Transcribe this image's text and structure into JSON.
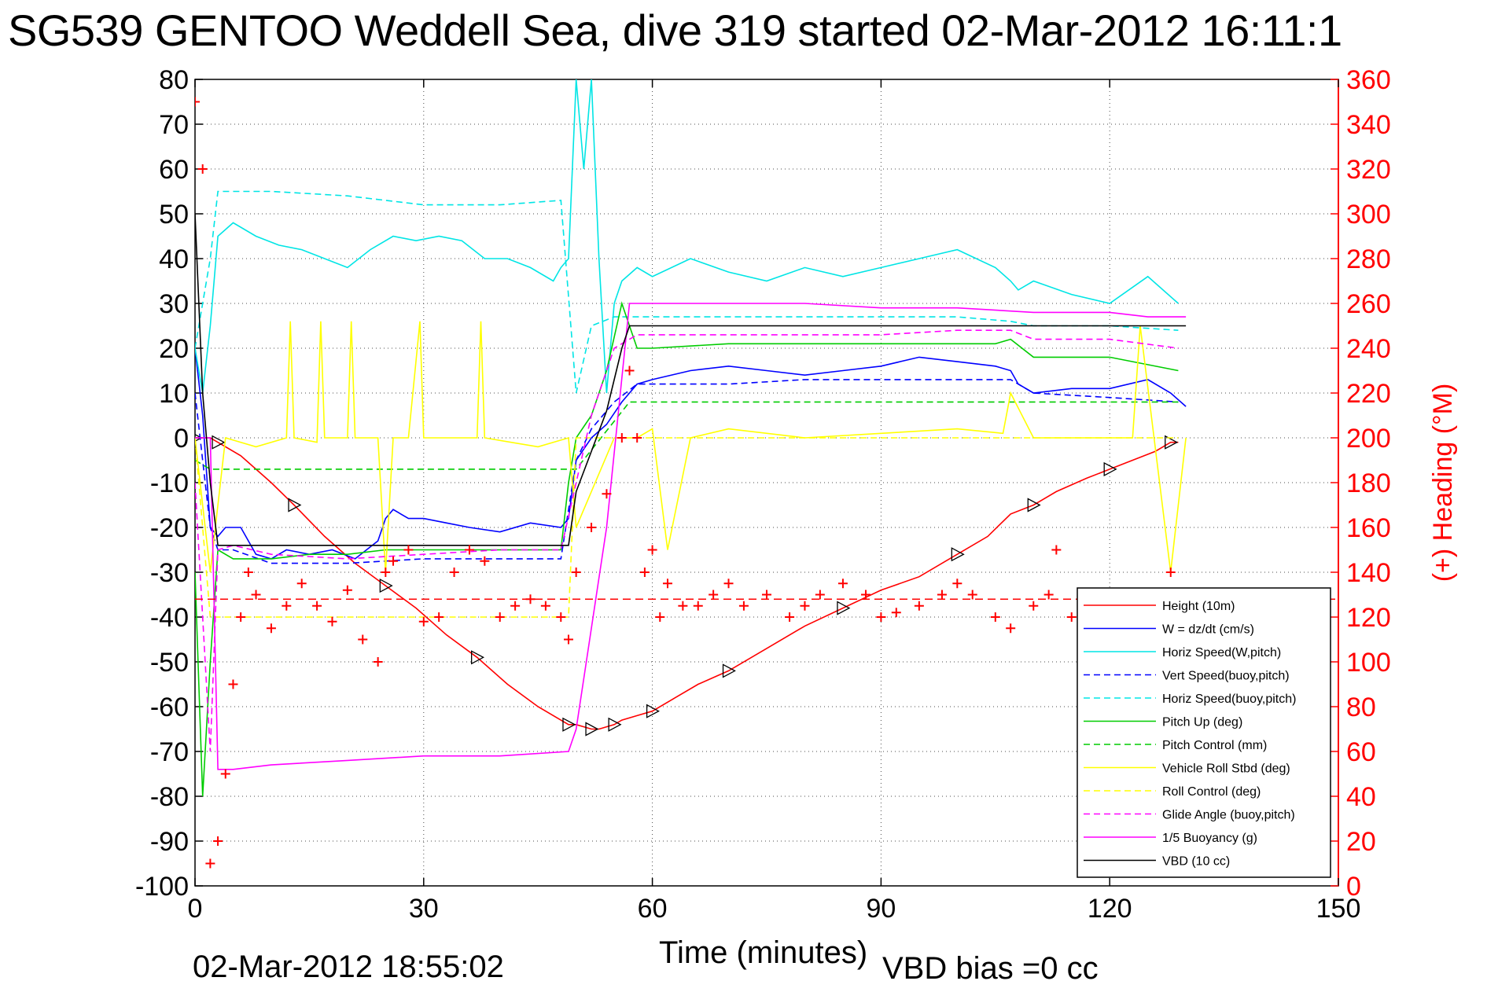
{
  "title": "SG539 GENTOO Weddell Sea, dive 319 started 02-Mar-2012 16:11:1",
  "footer": {
    "date": "02-Mar-2012 18:55:02",
    "vbd_bias": "VBD bias =0 cc"
  },
  "chart_data": {
    "type": "line",
    "xlabel": "Time (minutes)",
    "ylabel": "",
    "y2label": "(+) Heading (°M)",
    "xlim": [
      0,
      150
    ],
    "ylim": [
      -100,
      80
    ],
    "y2lim": [
      0,
      360
    ],
    "xticks": [
      0,
      30,
      60,
      90,
      120,
      150
    ],
    "yticks": [
      80,
      70,
      60,
      50,
      40,
      30,
      20,
      10,
      0,
      -10,
      -20,
      -30,
      -40,
      -50,
      -60,
      -70,
      -80,
      -90,
      -100
    ],
    "y2ticks": [
      360,
      340,
      320,
      300,
      280,
      260,
      240,
      220,
      200,
      180,
      160,
      140,
      120,
      100,
      80,
      60,
      40,
      20,
      0
    ],
    "grid": true,
    "legend_position": "bottom-right",
    "colors": {
      "red": "#ff0000",
      "blue": "#0000ff",
      "cyan": "#00e5e5",
      "green": "#00cc00",
      "yellow": "#ffff00",
      "magenta": "#ff00ff",
      "black": "#000000"
    },
    "series": [
      {
        "name": "Height (10m)",
        "color": "#ff0000",
        "style": "solid",
        "markers": "triangle",
        "x": [
          0,
          1,
          2,
          3,
          6,
          10,
          13,
          17,
          21,
          25,
          29,
          33,
          37,
          41,
          45,
          49,
          50,
          51,
          52,
          53,
          54,
          55,
          56,
          58,
          60,
          63,
          66,
          70,
          75,
          80,
          85,
          90,
          95,
          100,
          104,
          107,
          110,
          113,
          117,
          120,
          123,
          126,
          128,
          129
        ],
        "y": [
          0,
          0,
          0,
          -1,
          -4,
          -10,
          -15,
          -22,
          -28,
          -33,
          -38,
          -44,
          -49,
          -55,
          -60,
          -64,
          -64,
          -64.5,
          -65,
          -65,
          -64.5,
          -64,
          -63,
          -62,
          -61,
          -58,
          -55,
          -52,
          -47,
          -42,
          -38,
          -34,
          -31,
          -26,
          -22,
          -17,
          -15,
          -12,
          -9,
          -7,
          -5,
          -3,
          -1,
          -1
        ]
      },
      {
        "name": "W = dz/dt (cm/s)",
        "color": "#0000ff",
        "style": "solid",
        "x": [
          0,
          1,
          2,
          3,
          4,
          6,
          8,
          10,
          12,
          15,
          18,
          21,
          24,
          25,
          26,
          28,
          30,
          33,
          36,
          40,
          44,
          48,
          49,
          50,
          52,
          54,
          56,
          58,
          60,
          65,
          70,
          75,
          80,
          85,
          90,
          95,
          100,
          105,
          107,
          108,
          110,
          115,
          120,
          125,
          128,
          130
        ],
        "y": [
          20,
          5,
          -20,
          -22,
          -20,
          -20,
          -26,
          -27,
          -25,
          -26,
          -25,
          -27,
          -23,
          -18,
          -16,
          -18,
          -18,
          -19,
          -20,
          -21,
          -19,
          -20,
          -18,
          -5,
          0,
          3,
          8,
          12,
          13,
          15,
          16,
          15,
          14,
          15,
          16,
          18,
          17,
          16,
          15,
          12,
          10,
          11,
          11,
          13,
          10,
          7
        ]
      },
      {
        "name": "Horiz Speed(W,pitch)",
        "color": "#00e5e5",
        "style": "solid",
        "x": [
          0,
          1,
          2,
          3,
          5,
          8,
          11,
          14,
          17,
          20,
          23,
          26,
          29,
          32,
          35,
          38,
          41,
          44,
          47,
          48,
          49,
          50,
          51,
          52,
          53,
          54,
          55,
          56,
          58,
          60,
          65,
          70,
          75,
          80,
          85,
          90,
          95,
          100,
          105,
          107,
          108,
          110,
          115,
          120,
          125,
          129
        ],
        "y": [
          20,
          10,
          25,
          45,
          48,
          45,
          43,
          42,
          40,
          38,
          42,
          45,
          44,
          45,
          44,
          40,
          40,
          38,
          35,
          38,
          40,
          80,
          60,
          80,
          40,
          10,
          30,
          35,
          38,
          36,
          40,
          37,
          35,
          38,
          36,
          38,
          40,
          42,
          38,
          35,
          33,
          35,
          32,
          30,
          36,
          30
        ]
      },
      {
        "name": "Vert Speed(buoy,pitch)",
        "color": "#0000ff",
        "style": "dashed",
        "x": [
          0,
          2,
          3,
          5,
          10,
          20,
          30,
          40,
          48,
          50,
          52,
          55,
          58,
          60,
          70,
          80,
          90,
          100,
          107,
          110,
          120,
          129
        ],
        "y": [
          10,
          -20,
          -25,
          -25,
          -28,
          -28,
          -27,
          -27,
          -27,
          -5,
          2,
          8,
          12,
          12,
          12,
          13,
          13,
          13,
          13,
          10,
          9,
          8
        ]
      },
      {
        "name": "Horiz Speed(buoy,pitch)",
        "color": "#00e5e5",
        "style": "dashed",
        "x": [
          0,
          2,
          3,
          5,
          10,
          20,
          30,
          40,
          48,
          50,
          52,
          55,
          58,
          60,
          70,
          80,
          90,
          100,
          107,
          110,
          120,
          129
        ],
        "y": [
          20,
          40,
          55,
          55,
          55,
          54,
          52,
          52,
          53,
          10,
          25,
          27,
          27,
          27,
          27,
          27,
          27,
          27,
          26,
          25,
          25,
          24
        ]
      },
      {
        "name": "Pitch Up (deg)",
        "color": "#00cc00",
        "style": "solid",
        "x": [
          0,
          1,
          2,
          3,
          5,
          10,
          15,
          20,
          25,
          30,
          35,
          40,
          45,
          48,
          49,
          50,
          52,
          54,
          56,
          58,
          60,
          70,
          80,
          90,
          100,
          105,
          107,
          110,
          120,
          129
        ],
        "y": [
          -30,
          -80,
          -50,
          -25,
          -27,
          -27,
          -26,
          -26,
          -25,
          -25,
          -25,
          -25,
          -25,
          -25,
          -10,
          0,
          5,
          15,
          30,
          20,
          20,
          21,
          21,
          21,
          21,
          21,
          22,
          18,
          18,
          15
        ]
      },
      {
        "name": "Pitch Control (mm)",
        "color": "#00cc00",
        "style": "dashed",
        "x": [
          0,
          2,
          3,
          49,
          50,
          57,
          58,
          129
        ],
        "y": [
          -5,
          -7,
          -7,
          -7,
          -7,
          8,
          8,
          8
        ]
      },
      {
        "name": "Vehicle Roll Stbd (deg)",
        "color": "#ffff00",
        "style": "solid",
        "x": [
          0,
          2,
          4,
          8,
          12,
          12.5,
          13,
          16,
          16.5,
          17,
          20,
          20.5,
          21,
          24,
          25,
          26,
          28,
          29.5,
          30,
          37,
          37.5,
          38,
          45,
          49,
          50,
          55,
          58,
          60,
          62,
          65,
          70,
          80,
          90,
          100,
          106,
          107,
          110,
          120,
          123,
          124,
          128,
          130
        ],
        "y": [
          0,
          -30,
          0,
          -2,
          0,
          26,
          0,
          -1,
          26,
          0,
          0,
          26,
          0,
          0,
          -30,
          0,
          0,
          26,
          0,
          0,
          26,
          0,
          -2,
          0,
          -20,
          0,
          0,
          2,
          -25,
          0,
          2,
          0,
          1,
          2,
          1,
          10,
          0,
          0,
          0,
          25,
          -30,
          0
        ]
      },
      {
        "name": "Roll Control (deg)",
        "color": "#ffff00",
        "style": "dashed",
        "x": [
          0,
          2,
          3,
          49,
          50,
          57,
          58,
          129
        ],
        "y": [
          0,
          -40,
          -40,
          -40,
          0,
          0,
          0,
          0
        ]
      },
      {
        "name": "Glide Angle (buoy,pitch)",
        "color": "#ff00ff",
        "style": "dashed",
        "x": [
          0,
          2,
          3,
          5,
          10,
          20,
          30,
          40,
          48,
          50,
          52,
          55,
          58,
          60,
          70,
          80,
          90,
          100,
          107,
          110,
          120,
          129
        ],
        "y": [
          -10,
          -70,
          -25,
          -24,
          -26,
          -27,
          -26,
          -25,
          -25,
          -10,
          5,
          20,
          23,
          23,
          23,
          23,
          23,
          24,
          24,
          22,
          22,
          20
        ]
      },
      {
        "name": "1/5 Buoyancy (g)",
        "color": "#ff00ff",
        "style": "solid",
        "x": [
          0,
          2,
          3,
          5,
          10,
          20,
          30,
          40,
          49,
          50,
          54,
          57,
          58,
          60,
          70,
          80,
          90,
          100,
          110,
          120,
          125,
          130
        ],
        "y": [
          0,
          0,
          -74,
          -74,
          -73,
          -72,
          -71,
          -71,
          -70,
          -65,
          -20,
          30,
          30,
          30,
          30,
          30,
          29,
          29,
          28,
          28,
          27,
          27
        ]
      },
      {
        "name": "VBD (10 cc)",
        "color": "#000000",
        "style": "solid",
        "x": [
          0,
          1,
          2,
          3,
          10,
          20,
          30,
          40,
          49,
          50,
          52,
          54,
          56,
          57,
          58,
          130
        ],
        "y": [
          50,
          10,
          -10,
          -24,
          -24,
          -24,
          -24,
          -24,
          -24,
          -12,
          -3,
          6,
          20,
          25,
          25,
          25
        ]
      },
      {
        "name": "Heading",
        "color": "#ff0000",
        "style": "plus-markers",
        "axis": "right",
        "dashed_reference": 128,
        "x": [
          0,
          1,
          2,
          3,
          4,
          5,
          6,
          7,
          8,
          10,
          12,
          14,
          16,
          18,
          20,
          22,
          24,
          25,
          26,
          28,
          30,
          32,
          34,
          36,
          38,
          40,
          42,
          44,
          46,
          48,
          49,
          50,
          52,
          54,
          56,
          57,
          58,
          59,
          60,
          61,
          62,
          64,
          66,
          68,
          70,
          72,
          75,
          78,
          80,
          82,
          85,
          88,
          90,
          92,
          95,
          98,
          100,
          102,
          105,
          107,
          110,
          112,
          113,
          115,
          118,
          120,
          125,
          128
        ],
        "y": [
          350,
          320,
          10,
          20,
          50,
          90,
          120,
          140,
          130,
          115,
          125,
          135,
          125,
          118,
          132,
          110,
          100,
          140,
          145,
          150,
          118,
          120,
          140,
          150,
          145,
          120,
          125,
          128,
          125,
          120,
          110,
          140,
          160,
          175,
          200,
          230,
          200,
          140,
          150,
          120,
          135,
          125,
          125,
          130,
          135,
          125,
          130,
          120,
          125,
          130,
          135,
          130,
          120,
          122,
          125,
          130,
          135,
          130,
          120,
          115,
          125,
          130,
          150,
          120,
          130,
          130,
          130,
          140
        ]
      }
    ]
  }
}
